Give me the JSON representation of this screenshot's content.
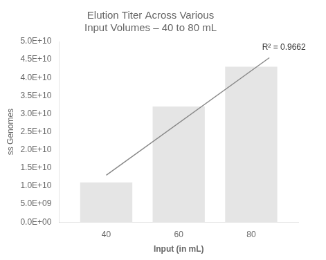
{
  "chart_data": {
    "type": "bar",
    "title": "Elution Titer Across Various\nInput Volumes – 40 to 80 mL",
    "xlabel": "Input (in mL)",
    "ylabel": "ss Genomes",
    "x": [
      40,
      60,
      80
    ],
    "series": [
      {
        "type": "bar",
        "values": [
          11000000000.0,
          32000000000.0,
          43000000000.0
        ]
      },
      {
        "type": "line",
        "x": [
          40,
          85
        ],
        "values": [
          13000000000.0,
          45500000000.0
        ],
        "color": "#888888"
      }
    ],
    "xlim": [
      27,
      93
    ],
    "xticks": [
      40,
      60,
      80
    ],
    "ylim": [
      0,
      50000000000.0
    ],
    "yticks": [
      {
        "value": 0,
        "label": "0.0E+00"
      },
      {
        "value": 5000000000.0,
        "label": "5.0E+09"
      },
      {
        "value": 10000000000.0,
        "label": "1.0E+10"
      },
      {
        "value": 15000000000.0,
        "label": "1.5E+10"
      },
      {
        "value": 20000000000.0,
        "label": "2.0E+10"
      },
      {
        "value": 25000000000.0,
        "label": "2.5E+10"
      },
      {
        "value": 30000000000.0,
        "label": "3.0E+10"
      },
      {
        "value": 35000000000.0,
        "label": "3.5E+10"
      },
      {
        "value": 40000000000.0,
        "label": "4.0E+10"
      },
      {
        "value": 45000000000.0,
        "label": "4.5E+10"
      },
      {
        "value": 50000000000.0,
        "label": "5.0E+10"
      }
    ],
    "annotations": [
      {
        "text": "R² = 0.9662",
        "x": 83,
        "y": 47200000000.0
      }
    ],
    "grid": false,
    "legend": false
  }
}
